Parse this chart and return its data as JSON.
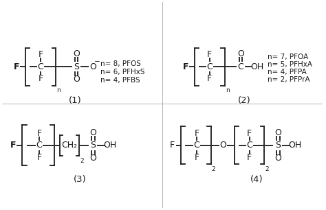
{
  "bg_color": "#ffffff",
  "text_color": "#1a1a1a",
  "line_color": "#1a1a1a",
  "structures": {
    "1": {
      "label": "(1)",
      "annotations": [
        "n= 8, PFOS",
        "n= 6, PFHxS",
        "n= 4, PFBS"
      ]
    },
    "2": {
      "label": "(2)",
      "annotations": [
        "n= 7, PFOA",
        "n= 5, PFHxA",
        "n= 4, PFPA",
        "n= 2, PFPrA"
      ]
    },
    "3": {
      "label": "(3)"
    },
    "4": {
      "label": "(4)"
    }
  }
}
